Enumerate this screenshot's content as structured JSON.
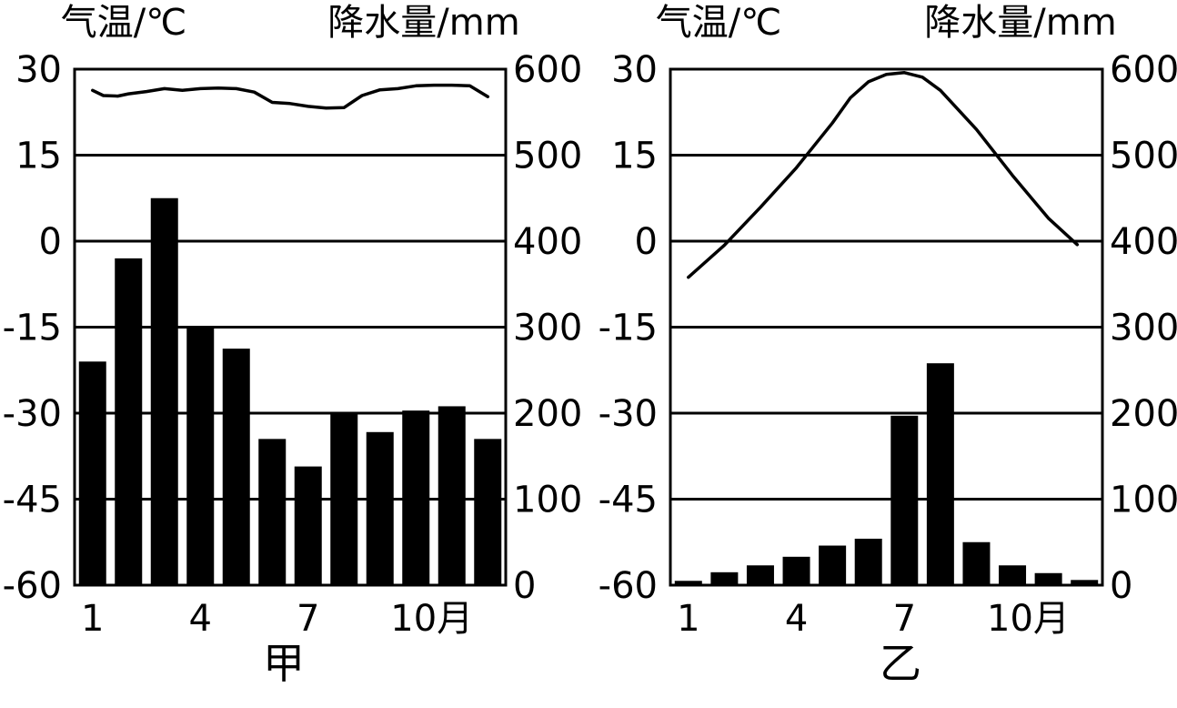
{
  "chart_data": [
    {
      "type": "bar+line",
      "title": "甲",
      "left_axis_title": "气温/℃",
      "right_axis_title": "降水量/mm",
      "left_ticks": [
        "30",
        "15",
        "0",
        "-15",
        "-30",
        "-45",
        "-60"
      ],
      "right_ticks": [
        "600",
        "500",
        "400",
        "300",
        "200",
        "100",
        "0"
      ],
      "temperature_range": [
        -60,
        30
      ],
      "precipitation_range": [
        0,
        600
      ],
      "x_tick_labels": [
        "1",
        "4",
        "7",
        "10月"
      ],
      "x_tick_months": [
        1,
        4,
        7,
        10
      ],
      "months": [
        1,
        2,
        3,
        4,
        5,
        6,
        7,
        8,
        9,
        10,
        11,
        12
      ],
      "precipitation": [
        260,
        380,
        450,
        300,
        275,
        170,
        138,
        200,
        178,
        203,
        208,
        170
      ],
      "temperature_line": [
        [
          1.0,
          26.3
        ],
        [
          1.3,
          25.4
        ],
        [
          1.7,
          25.3
        ],
        [
          2.0,
          25.7
        ],
        [
          2.5,
          26.1
        ],
        [
          3.0,
          26.6
        ],
        [
          3.5,
          26.3
        ],
        [
          4.0,
          26.6
        ],
        [
          4.5,
          26.7
        ],
        [
          5.0,
          26.6
        ],
        [
          5.5,
          26.0
        ],
        [
          6.0,
          24.2
        ],
        [
          6.5,
          24.0
        ],
        [
          7.0,
          23.5
        ],
        [
          7.5,
          23.2
        ],
        [
          8.0,
          23.3
        ],
        [
          8.5,
          25.4
        ],
        [
          9.0,
          26.4
        ],
        [
          9.5,
          26.6
        ],
        [
          10.0,
          27.1
        ],
        [
          10.5,
          27.2
        ],
        [
          11.0,
          27.2
        ],
        [
          11.5,
          27.1
        ],
        [
          12.0,
          25.2
        ]
      ]
    },
    {
      "type": "bar+line",
      "title": "乙",
      "left_axis_title": "气温/℃",
      "right_axis_title": "降水量/mm",
      "left_ticks": [
        "30",
        "15",
        "0",
        "-15",
        "-30",
        "-45",
        "-60"
      ],
      "right_ticks": [
        "600",
        "500",
        "400",
        "300",
        "200",
        "100",
        "0"
      ],
      "temperature_range": [
        -60,
        30
      ],
      "precipitation_range": [
        0,
        600
      ],
      "x_tick_labels": [
        "1",
        "4",
        "7",
        "10月"
      ],
      "x_tick_months": [
        1,
        4,
        7,
        10
      ],
      "months": [
        1,
        2,
        3,
        4,
        5,
        6,
        7,
        8,
        9,
        10,
        11,
        12
      ],
      "precipitation": [
        5,
        15,
        23,
        33,
        46,
        54,
        197,
        258,
        50,
        23,
        14,
        6
      ],
      "temperature_line": [
        [
          1.0,
          -6.3
        ],
        [
          2.0,
          -0.7
        ],
        [
          3.0,
          5.9
        ],
        [
          4.0,
          12.8
        ],
        [
          5.0,
          20.6
        ],
        [
          5.5,
          25.0
        ],
        [
          6.0,
          27.8
        ],
        [
          6.5,
          29.1
        ],
        [
          7.0,
          29.4
        ],
        [
          7.5,
          28.6
        ],
        [
          8.0,
          26.3
        ],
        [
          9.0,
          19.5
        ],
        [
          10.0,
          11.5
        ],
        [
          11.0,
          4.0
        ],
        [
          11.8,
          -0.6
        ]
      ]
    }
  ]
}
